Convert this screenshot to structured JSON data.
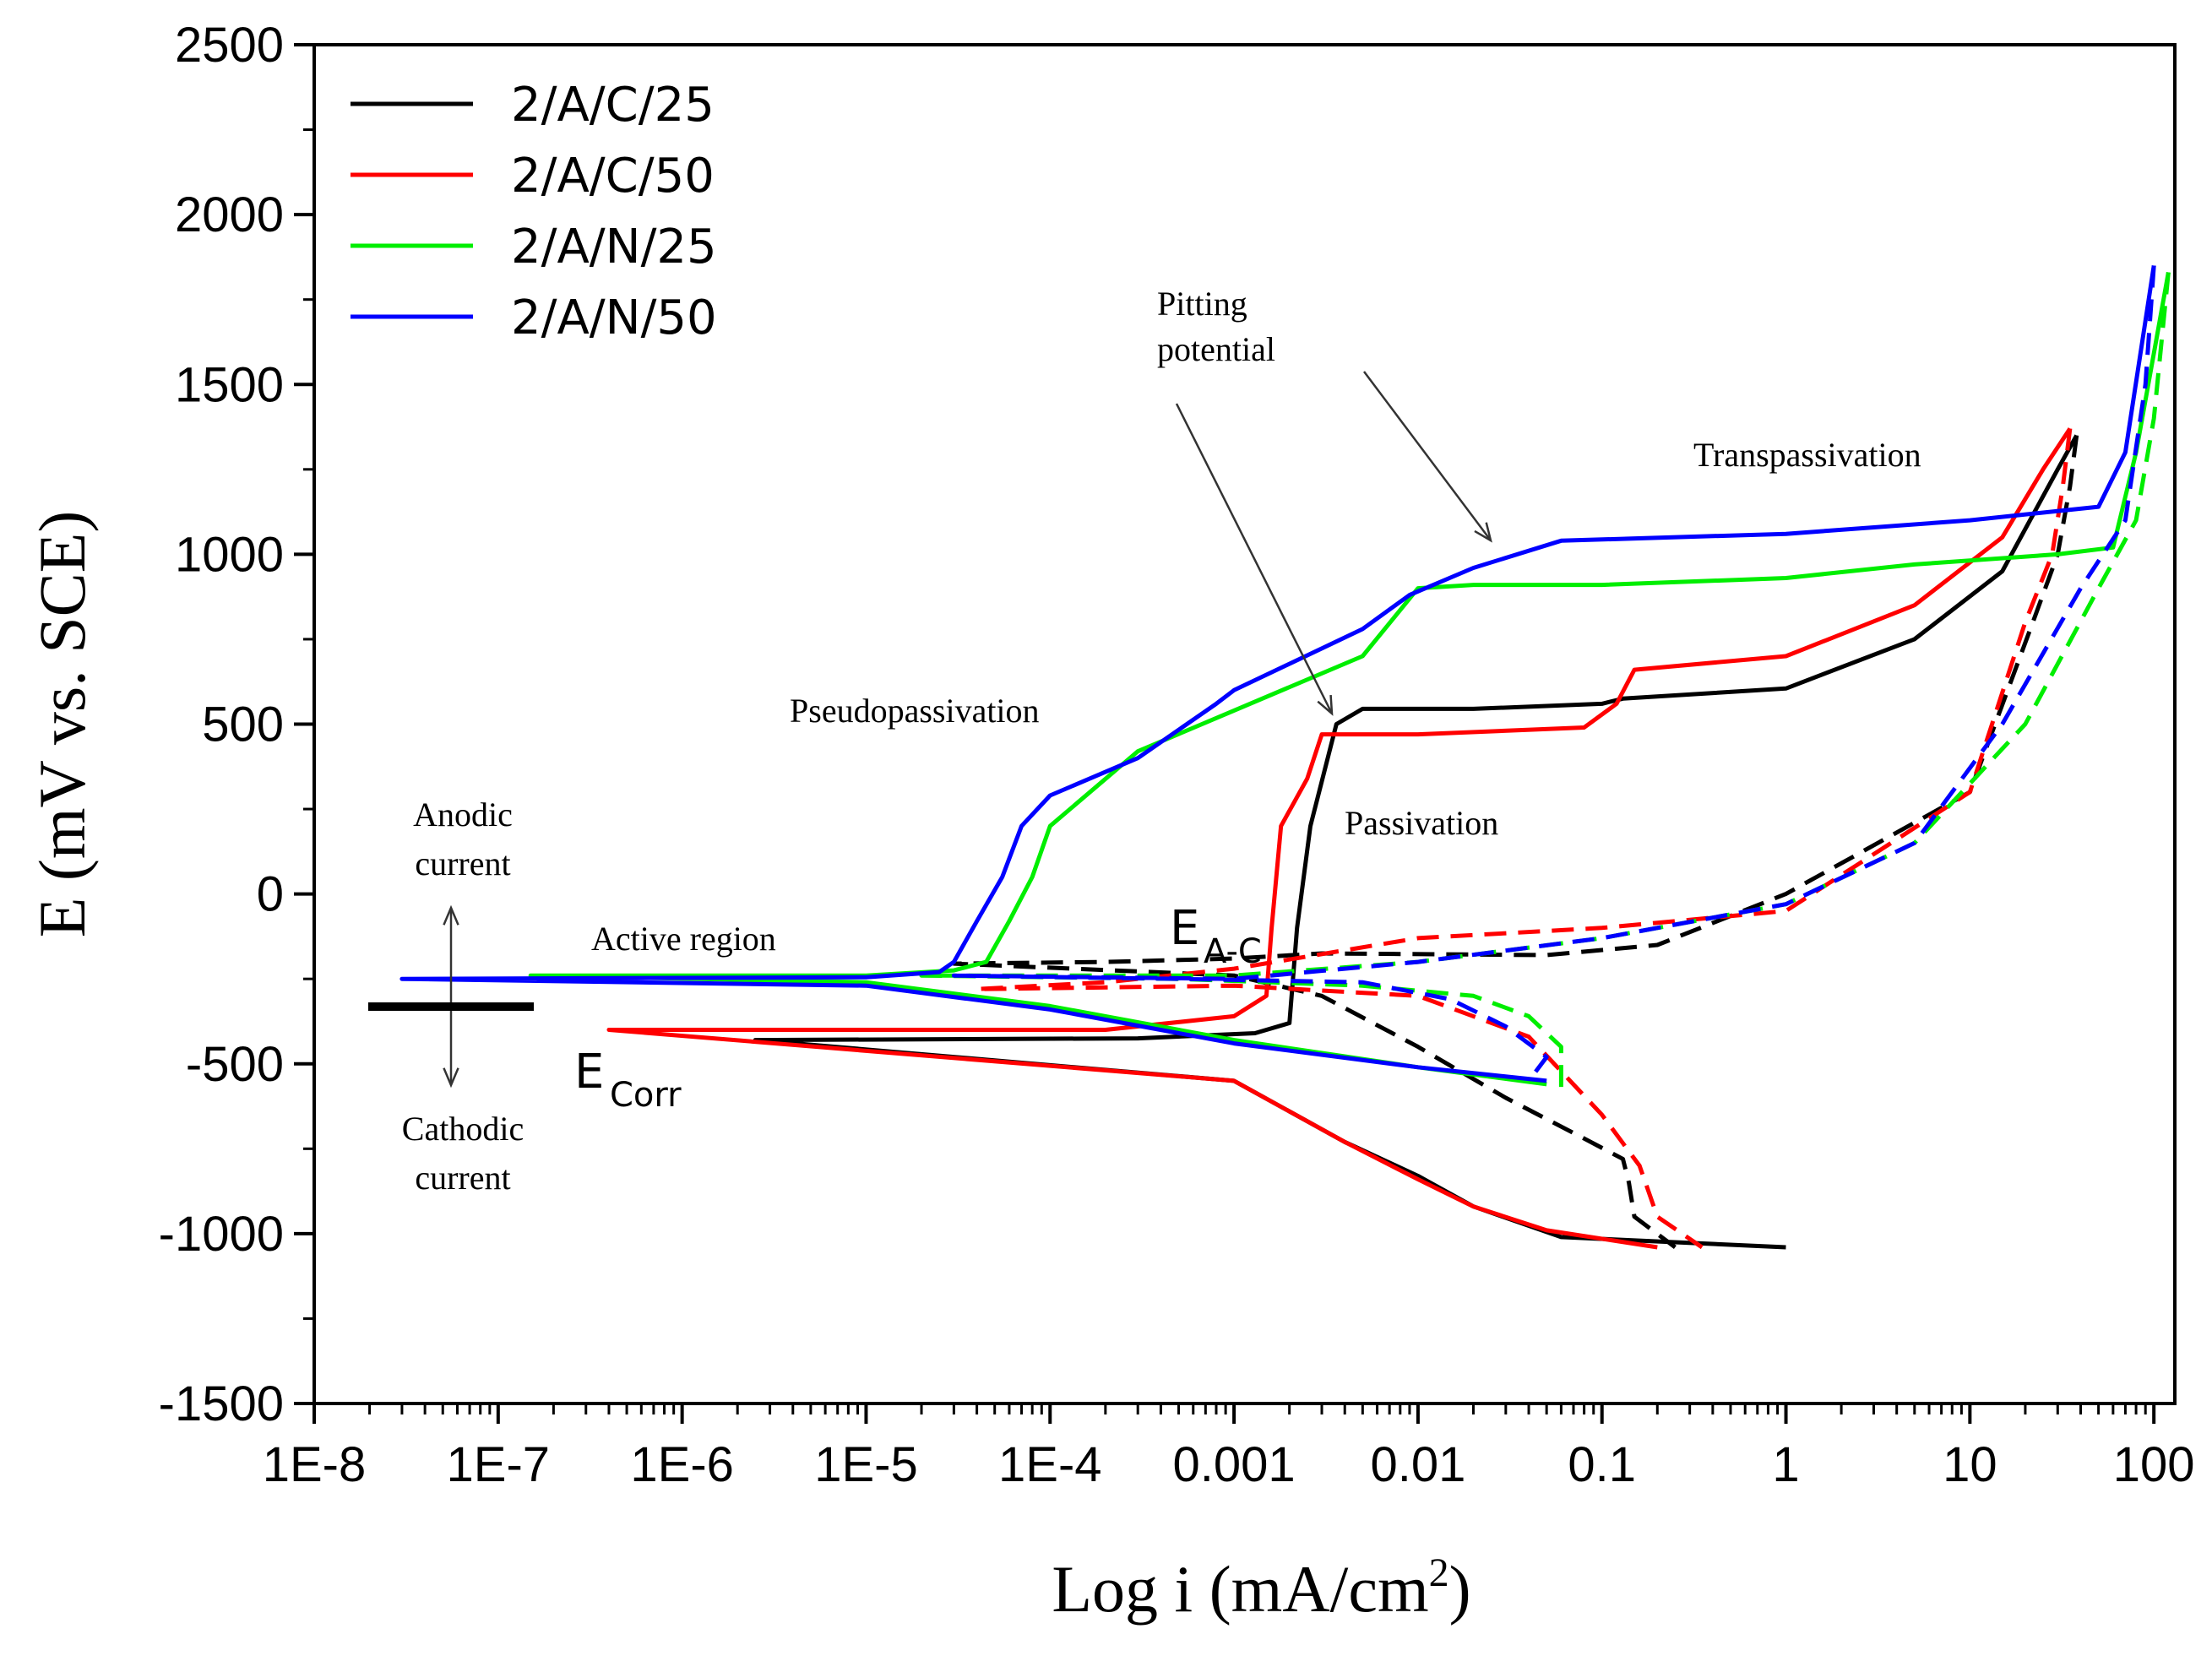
{
  "chart_data": {
    "type": "line",
    "xlabel": "Log i (mA/cm",
    "xlabel_sup": "2",
    "xlabel_end": ")",
    "ylabel": "E (mV vs. SCE)",
    "xscale": "log",
    "xlim": [
      1e-08,
      130
    ],
    "ylim": [
      -1500,
      2500
    ],
    "x_ticks": [
      1e-08,
      1e-07,
      1e-06,
      1e-05,
      0.0001,
      0.001,
      0.01,
      0.1,
      1,
      10,
      100
    ],
    "x_tick_labels": [
      "1E-8",
      "1E-7",
      "1E-6",
      "1E-5",
      "1E-4",
      "0.001",
      "0.01",
      "0.1",
      "1",
      "10",
      "100"
    ],
    "y_ticks": [
      -1500,
      -1000,
      -500,
      0,
      500,
      1000,
      1500,
      2000,
      2500
    ],
    "y_tick_labels": [
      "-1500",
      "-1000",
      "-500",
      "0",
      "500",
      "1000",
      "1500",
      "2000",
      "2500"
    ],
    "grid": false,
    "legend_position": "top-left",
    "series": [
      {
        "name": "2/A/C/25",
        "color": "#000000",
        "forward": [
          [
            1.0,
            -1040
          ],
          [
            0.06,
            -1010
          ],
          [
            0.02,
            -920
          ],
          [
            0.01,
            -830
          ],
          [
            0.004,
            -730
          ],
          [
            0.001,
            -550
          ],
          [
            2.5e-06,
            -430
          ],
          [
            0.0003,
            -425
          ],
          [
            0.0013,
            -410
          ],
          [
            0.002,
            -380
          ],
          [
            0.0022,
            -100
          ],
          [
            0.0026,
            200
          ],
          [
            0.0036,
            500
          ],
          [
            0.005,
            545
          ],
          [
            0.02,
            545
          ],
          [
            0.1,
            560
          ],
          [
            0.13,
            575
          ],
          [
            1,
            605
          ],
          [
            5,
            750
          ],
          [
            15,
            950
          ],
          [
            30,
            1250
          ],
          [
            38,
            1350
          ]
        ],
        "reverse": [
          [
            38,
            1350
          ],
          [
            35,
            1200
          ],
          [
            30,
            1000
          ],
          [
            22,
            800
          ],
          [
            10,
            300
          ],
          [
            1,
            0
          ],
          [
            0.2,
            -150
          ],
          [
            0.05,
            -180
          ],
          [
            0.003,
            -175
          ],
          [
            0.001,
            -190
          ],
          [
            0.0002,
            -200
          ],
          [
            3e-05,
            -205
          ],
          [
            0.001,
            -240
          ],
          [
            0.003,
            -300
          ],
          [
            0.01,
            -450
          ],
          [
            0.03,
            -600
          ],
          [
            0.08,
            -720
          ],
          [
            0.13,
            -780
          ],
          [
            0.14,
            -850
          ],
          [
            0.15,
            -950
          ],
          [
            0.25,
            -1040
          ]
        ]
      },
      {
        "name": "2/A/C/50",
        "color": "#ff0000",
        "forward": [
          [
            0.2,
            -1040
          ],
          [
            0.05,
            -990
          ],
          [
            0.02,
            -920
          ],
          [
            0.01,
            -840
          ],
          [
            0.004,
            -730
          ],
          [
            0.001,
            -550
          ],
          [
            4e-07,
            -400
          ],
          [
            0.0002,
            -400
          ],
          [
            0.001,
            -360
          ],
          [
            0.0015,
            -300
          ],
          [
            0.0016,
            -100
          ],
          [
            0.0018,
            200
          ],
          [
            0.0025,
            340
          ],
          [
            0.003,
            470
          ],
          [
            0.01,
            470
          ],
          [
            0.08,
            490
          ],
          [
            0.12,
            560
          ],
          [
            0.15,
            660
          ],
          [
            1,
            700
          ],
          [
            5,
            850
          ],
          [
            15,
            1050
          ],
          [
            25,
            1250
          ],
          [
            35,
            1370
          ]
        ],
        "reverse": [
          [
            35,
            1370
          ],
          [
            32,
            1200
          ],
          [
            28,
            1000
          ],
          [
            20,
            800
          ],
          [
            10,
            300
          ],
          [
            1,
            -50
          ],
          [
            0.1,
            -100
          ],
          [
            0.01,
            -130
          ],
          [
            0.001,
            -220
          ],
          [
            0.0002,
            -260
          ],
          [
            4e-05,
            -280
          ],
          [
            0.001,
            -270
          ],
          [
            0.01,
            -300
          ],
          [
            0.04,
            -420
          ],
          [
            0.1,
            -650
          ],
          [
            0.16,
            -800
          ],
          [
            0.2,
            -950
          ],
          [
            0.35,
            -1040
          ]
        ]
      },
      {
        "name": "2/A/N/25",
        "color": "#00ee00",
        "forward": [
          [
            0.05,
            -560
          ],
          [
            0.01,
            -510
          ],
          [
            0.001,
            -430
          ],
          [
            0.0001,
            -330
          ],
          [
            1e-05,
            -260
          ],
          [
            1.5e-07,
            -240
          ],
          [
            1e-05,
            -240
          ],
          [
            3e-05,
            -225
          ],
          [
            4.5e-05,
            -200
          ],
          [
            6e-05,
            -80
          ],
          [
            8e-05,
            50
          ],
          [
            0.0001,
            200
          ],
          [
            0.0003,
            420
          ],
          [
            0.001,
            540
          ],
          [
            0.005,
            700
          ],
          [
            0.01,
            900
          ],
          [
            0.02,
            910
          ],
          [
            0.1,
            910
          ],
          [
            1,
            930
          ],
          [
            5,
            970
          ],
          [
            30,
            1000
          ],
          [
            60,
            1020
          ],
          [
            80,
            1300
          ],
          [
            120,
            1830
          ]
        ],
        "reverse": [
          [
            120,
            1830
          ],
          [
            100,
            1400
          ],
          [
            80,
            1100
          ],
          [
            50,
            900
          ],
          [
            20,
            500
          ],
          [
            5,
            150
          ],
          [
            1,
            -30
          ],
          [
            0.1,
            -130
          ],
          [
            0.01,
            -200
          ],
          [
            0.001,
            -240
          ],
          [
            2e-05,
            -240
          ],
          [
            0.0005,
            -250
          ],
          [
            0.005,
            -270
          ],
          [
            0.02,
            -300
          ],
          [
            0.04,
            -360
          ],
          [
            0.06,
            -450
          ],
          [
            0.06,
            -570
          ]
        ]
      },
      {
        "name": "2/A/N/50",
        "color": "#0000ff",
        "forward": [
          [
            0.05,
            -550
          ],
          [
            0.01,
            -510
          ],
          [
            0.001,
            -440
          ],
          [
            0.0001,
            -340
          ],
          [
            1e-05,
            -270
          ],
          [
            3e-08,
            -250
          ],
          [
            1e-05,
            -245
          ],
          [
            2.5e-05,
            -230
          ],
          [
            3e-05,
            -200
          ],
          [
            4e-05,
            -80
          ],
          [
            5.5e-05,
            50
          ],
          [
            7e-05,
            200
          ],
          [
            0.0001,
            290
          ],
          [
            0.0003,
            400
          ],
          [
            0.0008,
            560
          ],
          [
            0.001,
            600
          ],
          [
            0.005,
            780
          ],
          [
            0.009,
            880
          ],
          [
            0.02,
            960
          ],
          [
            0.06,
            1040
          ],
          [
            1,
            1060
          ],
          [
            10,
            1100
          ],
          [
            50,
            1140
          ],
          [
            70,
            1300
          ],
          [
            100,
            1850
          ]
        ],
        "reverse": [
          [
            100,
            1850
          ],
          [
            90,
            1500
          ],
          [
            70,
            1100
          ],
          [
            40,
            900
          ],
          [
            15,
            500
          ],
          [
            5,
            150
          ],
          [
            1,
            -30
          ],
          [
            0.1,
            -130
          ],
          [
            0.01,
            -200
          ],
          [
            0.001,
            -250
          ],
          [
            3e-05,
            -240
          ],
          [
            0.0005,
            -250
          ],
          [
            0.005,
            -260
          ],
          [
            0.015,
            -310
          ],
          [
            0.03,
            -390
          ],
          [
            0.05,
            -480
          ],
          [
            0.04,
            -550
          ]
        ]
      }
    ],
    "annotations": {
      "pitting": "Pitting\npotential",
      "transpassivation": "Transpassivation",
      "pseudopassivation": "Pseudopassivation",
      "passivation": "Passivation",
      "active_region": "Active region",
      "anodic": "Anodic\ncurrent",
      "cathodic": "Cathodic\ncurrent",
      "e_ac_main": "E",
      "e_ac_sub": "A-C",
      "e_corr_main": "E",
      "e_corr_sub": "Corr"
    }
  }
}
